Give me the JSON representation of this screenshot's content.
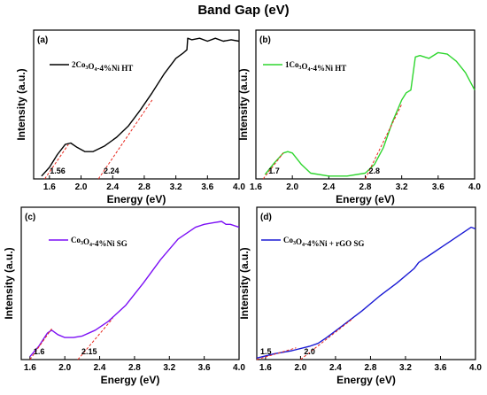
{
  "figure_title": "Band Gap (eV)",
  "colors": {
    "axis": "#000000",
    "fit": "#e8281e"
  },
  "chart_data": [
    {
      "type": "line",
      "panel_label": "(a)",
      "legend": {
        "prefix": "2Co",
        "sub1": "3",
        "mid": "O",
        "sub2": "4",
        "suffix": "-4%Ni HT"
      },
      "color": "#000000",
      "xlabel": "Energy (eV)",
      "ylabel": "Intensity (a.u.)",
      "xlim": [
        1.4,
        4.0
      ],
      "ylim": [
        0,
        1
      ],
      "xticks": [
        "1.6",
        "2.0",
        "2.4",
        "2.8",
        "3.2",
        "3.6",
        "4.0"
      ],
      "series": [
        {
          "x": [
            1.5,
            1.6,
            1.7,
            1.8,
            1.87,
            1.95,
            2.05,
            2.15,
            2.3,
            2.45,
            2.6,
            2.75,
            2.9,
            3.05,
            3.2,
            3.3,
            3.34,
            3.35,
            3.4,
            3.5,
            3.6,
            3.7,
            3.8,
            3.9,
            4.0
          ],
          "y": [
            0.02,
            0.08,
            0.17,
            0.24,
            0.25,
            0.22,
            0.19,
            0.19,
            0.23,
            0.29,
            0.37,
            0.48,
            0.6,
            0.73,
            0.84,
            0.88,
            0.9,
            0.98,
            0.97,
            0.98,
            0.96,
            0.98,
            0.96,
            0.97,
            0.96
          ]
        }
      ],
      "fits": [
        {
          "x": [
            1.54,
            1.84
          ],
          "y": [
            0.0,
            0.24
          ]
        },
        {
          "x": [
            2.22,
            2.9
          ],
          "y": [
            0.0,
            0.55
          ]
        }
      ],
      "annotations": [
        {
          "text": "1.56",
          "x": 1.56
        },
        {
          "text": "2.24",
          "x": 2.24
        }
      ]
    },
    {
      "type": "line",
      "panel_label": "(b)",
      "legend": {
        "prefix": "1Co",
        "sub1": "3",
        "mid": "O",
        "sub2": "4",
        "suffix": "-4%Ni HT"
      },
      "color": "#2ed62e",
      "xlabel": "Energy (eV)",
      "ylabel": "Intensity (a.u.)",
      "xlim": [
        1.6,
        4.0
      ],
      "ylim": [
        0,
        1
      ],
      "xticks": [
        "1.6",
        "2.0",
        "2.4",
        "2.8",
        "3.2",
        "3.6",
        "4.0"
      ],
      "series": [
        {
          "x": [
            1.7,
            1.8,
            1.9,
            1.95,
            2.0,
            2.1,
            2.2,
            2.4,
            2.6,
            2.8,
            2.9,
            3.0,
            3.1,
            3.2,
            3.25,
            3.3,
            3.35,
            3.4,
            3.5,
            3.6,
            3.7,
            3.8,
            3.9,
            4.0
          ],
          "y": [
            0.03,
            0.11,
            0.18,
            0.19,
            0.18,
            0.1,
            0.04,
            0.02,
            0.02,
            0.04,
            0.1,
            0.22,
            0.4,
            0.55,
            0.6,
            0.62,
            0.85,
            0.86,
            0.84,
            0.88,
            0.87,
            0.82,
            0.74,
            0.62
          ]
        }
      ],
      "fits": [
        {
          "x": [
            1.68,
            1.9
          ],
          "y": [
            0.0,
            0.18
          ]
        },
        {
          "x": [
            2.8,
            3.2
          ],
          "y": [
            0.0,
            0.52
          ]
        }
      ],
      "annotations": [
        {
          "text": "1.7",
          "x": 1.7
        },
        {
          "text": "2.8",
          "x": 2.8
        }
      ]
    },
    {
      "type": "line",
      "panel_label": "(c)",
      "legend": {
        "prefix": "Co",
        "sub1": "3",
        "mid": "O",
        "sub2": "4",
        "suffix": "-4%Ni SG"
      },
      "color": "#7b0ff5",
      "xlabel": "Energy (eV)",
      "ylabel": "Intensity (a.u.)",
      "xlim": [
        1.5,
        4.0
      ],
      "ylim": [
        0,
        1
      ],
      "xticks": [
        "1.6",
        "2.0",
        "2.4",
        "2.8",
        "3.2",
        "3.6",
        "4.0"
      ],
      "series": [
        {
          "x": [
            1.6,
            1.7,
            1.8,
            1.85,
            1.92,
            2.0,
            2.1,
            2.2,
            2.35,
            2.5,
            2.7,
            2.9,
            3.1,
            3.3,
            3.5,
            3.6,
            3.7,
            3.8,
            3.85,
            3.9,
            4.0
          ],
          "y": [
            0.02,
            0.09,
            0.18,
            0.2,
            0.17,
            0.15,
            0.15,
            0.16,
            0.2,
            0.26,
            0.37,
            0.52,
            0.68,
            0.82,
            0.9,
            0.92,
            0.93,
            0.94,
            0.92,
            0.92,
            0.9
          ]
        }
      ],
      "fits": [
        {
          "x": [
            1.6,
            1.85
          ],
          "y": [
            0.0,
            0.21
          ]
        },
        {
          "x": [
            2.15,
            2.55
          ],
          "y": [
            0.0,
            0.28
          ]
        }
      ],
      "annotations": [
        {
          "text": "1.6",
          "x": 1.6
        },
        {
          "text": "2.15",
          "x": 2.15
        }
      ]
    },
    {
      "type": "line",
      "panel_label": "(d)",
      "legend": {
        "prefix": "Co",
        "sub1": "3",
        "mid": "O",
        "sub2": "4",
        "suffix": "-4%Ni + rGO SG"
      },
      "color": "#1a1ad4",
      "xlabel": "Energy (eV)",
      "ylabel": "Intensity (a.u.)",
      "xlim": [
        1.5,
        4.0
      ],
      "ylim": [
        0,
        1
      ],
      "xticks": [
        "1.6",
        "2.0",
        "2.4",
        "2.8",
        "3.2",
        "3.6",
        "4.0"
      ],
      "series": [
        {
          "x": [
            1.5,
            1.7,
            1.9,
            2.1,
            2.2,
            2.3,
            2.5,
            2.7,
            2.9,
            3.1,
            3.3,
            3.35,
            3.4,
            3.5,
            3.6,
            3.7,
            3.8,
            3.9,
            3.95,
            4.0
          ],
          "y": [
            0.01,
            0.04,
            0.06,
            0.09,
            0.11,
            0.15,
            0.24,
            0.33,
            0.43,
            0.52,
            0.62,
            0.66,
            0.68,
            0.72,
            0.76,
            0.8,
            0.84,
            0.88,
            0.9,
            0.89
          ]
        }
      ],
      "fits": [
        {
          "x": [
            1.5,
            1.95
          ],
          "y": [
            0.0,
            0.08
          ]
        },
        {
          "x": [
            2.0,
            2.6
          ],
          "y": [
            0.0,
            0.28
          ]
        }
      ],
      "annotations": [
        {
          "text": "1.5",
          "x": 1.5
        },
        {
          "text": "2.0",
          "x": 2.0
        }
      ]
    }
  ]
}
